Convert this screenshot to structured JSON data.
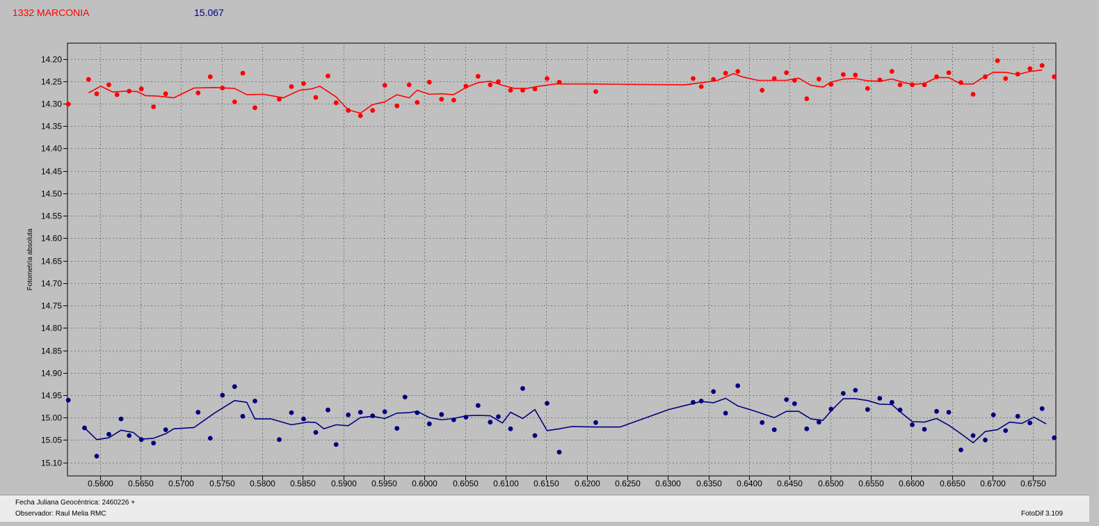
{
  "header": {
    "object_name": "1332 MARCONIA",
    "magnitude": "15.067"
  },
  "footer": {
    "date_label": "Fecha Juliana Geocéntrica: 2460226 +",
    "observer_label": "Observador: Raul Melia RMC",
    "version_label": "FotoDif 3.109"
  },
  "chart_data": {
    "type": "scatter",
    "ylabel": "Fotometría absoluta",
    "xlabel": "",
    "xlim": [
      0.556,
      0.6778
    ],
    "ylim": [
      14.165,
      15.13
    ],
    "y_inverted": true,
    "grid": true,
    "colors": {
      "series_1": "#ff0000",
      "series_2": "#000080"
    },
    "x_ticks": [
      "0.5600",
      "0.5650",
      "0.5700",
      "0.5750",
      "0.5800",
      "0.5850",
      "0.5900",
      "0.5950",
      "0.6000",
      "0.6050",
      "0.6100",
      "0.6150",
      "0.6200",
      "0.6250",
      "0.6300",
      "0.6350",
      "0.6400",
      "0.6450",
      "0.6500",
      "0.6550",
      "0.6600",
      "0.6650",
      "0.6700",
      "0.6750"
    ],
    "y_ticks": [
      "14.20",
      "14.25",
      "14.30",
      "14.35",
      "14.40",
      "14.45",
      "14.50",
      "14.55",
      "14.60",
      "14.65",
      "14.70",
      "14.75",
      "14.80",
      "14.85",
      "14.90",
      "14.95",
      "15.00",
      "15.05",
      "15.10"
    ],
    "series": [
      {
        "points": [
          [
            0.5561,
            14.301
          ],
          [
            0.5586,
            14.246
          ],
          [
            0.5596,
            14.278
          ],
          [
            0.5611,
            14.258
          ],
          [
            0.5621,
            14.28
          ],
          [
            0.5636,
            14.272
          ],
          [
            0.5651,
            14.267
          ],
          [
            0.5666,
            14.307
          ],
          [
            0.5681,
            14.278
          ],
          [
            0.5721,
            14.276
          ],
          [
            0.5736,
            14.24
          ],
          [
            0.5751,
            14.265
          ],
          [
            0.5766,
            14.296
          ],
          [
            0.5776,
            14.232
          ],
          [
            0.5791,
            14.309
          ],
          [
            0.5821,
            14.29
          ],
          [
            0.5836,
            14.262
          ],
          [
            0.5851,
            14.255
          ],
          [
            0.5866,
            14.286
          ],
          [
            0.5881,
            14.238
          ],
          [
            0.5891,
            14.298
          ],
          [
            0.5906,
            14.315
          ],
          [
            0.5921,
            14.327
          ],
          [
            0.5936,
            14.315
          ],
          [
            0.5951,
            14.259
          ],
          [
            0.5966,
            14.305
          ],
          [
            0.5981,
            14.258
          ],
          [
            0.5991,
            14.297
          ],
          [
            0.6006,
            14.252
          ],
          [
            0.6021,
            14.29
          ],
          [
            0.6036,
            14.292
          ],
          [
            0.6051,
            14.261
          ],
          [
            0.6066,
            14.239
          ],
          [
            0.6081,
            14.258
          ],
          [
            0.6091,
            14.251
          ],
          [
            0.6106,
            14.27
          ],
          [
            0.6121,
            14.27
          ],
          [
            0.6136,
            14.267
          ],
          [
            0.6151,
            14.244
          ],
          [
            0.6166,
            14.252
          ],
          [
            0.6211,
            14.273
          ],
          [
            0.6331,
            14.244
          ],
          [
            0.6341,
            14.262
          ],
          [
            0.6356,
            14.246
          ],
          [
            0.6371,
            14.232
          ],
          [
            0.6386,
            14.228
          ],
          [
            0.6416,
            14.27
          ],
          [
            0.6431,
            14.244
          ],
          [
            0.6446,
            14.231
          ],
          [
            0.6456,
            14.248
          ],
          [
            0.6471,
            14.289
          ],
          [
            0.6486,
            14.245
          ],
          [
            0.6501,
            14.257
          ],
          [
            0.6516,
            14.235
          ],
          [
            0.6531,
            14.236
          ],
          [
            0.6546,
            14.266
          ],
          [
            0.6561,
            14.247
          ],
          [
            0.6576,
            14.228
          ],
          [
            0.6586,
            14.258
          ],
          [
            0.6601,
            14.258
          ],
          [
            0.6616,
            14.258
          ],
          [
            0.6631,
            14.24
          ],
          [
            0.6646,
            14.231
          ],
          [
            0.6661,
            14.253
          ],
          [
            0.6676,
            14.279
          ],
          [
            0.6691,
            14.24
          ],
          [
            0.6706,
            14.204
          ],
          [
            0.6716,
            14.244
          ],
          [
            0.6731,
            14.234
          ],
          [
            0.6746,
            14.222
          ],
          [
            0.6761,
            14.215
          ],
          [
            0.6776,
            14.24
          ]
        ],
        "trend": [
          [
            0.5586,
            14.276
          ],
          [
            0.5601,
            14.261
          ],
          [
            0.5616,
            14.274
          ],
          [
            0.5631,
            14.272
          ],
          [
            0.5646,
            14.273
          ],
          [
            0.5656,
            14.282
          ],
          [
            0.5671,
            14.283
          ],
          [
            0.5681,
            14.285
          ],
          [
            0.5691,
            14.287
          ],
          [
            0.5716,
            14.265
          ],
          [
            0.5741,
            14.264
          ],
          [
            0.5766,
            14.266
          ],
          [
            0.5781,
            14.28
          ],
          [
            0.5801,
            14.279
          ],
          [
            0.5826,
            14.287
          ],
          [
            0.5846,
            14.27
          ],
          [
            0.5861,
            14.267
          ],
          [
            0.5871,
            14.261
          ],
          [
            0.5891,
            14.285
          ],
          [
            0.5906,
            14.314
          ],
          [
            0.5921,
            14.321
          ],
          [
            0.5936,
            14.302
          ],
          [
            0.5951,
            14.296
          ],
          [
            0.5966,
            14.28
          ],
          [
            0.5981,
            14.287
          ],
          [
            0.5991,
            14.27
          ],
          [
            0.6006,
            14.279
          ],
          [
            0.6021,
            14.278
          ],
          [
            0.6036,
            14.28
          ],
          [
            0.6051,
            14.264
          ],
          [
            0.6066,
            14.253
          ],
          [
            0.6081,
            14.25
          ],
          [
            0.6096,
            14.259
          ],
          [
            0.6111,
            14.266
          ],
          [
            0.6126,
            14.266
          ],
          [
            0.6141,
            14.261
          ],
          [
            0.6161,
            14.256
          ],
          [
            0.6201,
            14.256
          ],
          [
            0.6256,
            14.257
          ],
          [
            0.6321,
            14.258
          ],
          [
            0.6346,
            14.252
          ],
          [
            0.6361,
            14.248
          ],
          [
            0.6381,
            14.233
          ],
          [
            0.6391,
            14.24
          ],
          [
            0.6411,
            14.248
          ],
          [
            0.6446,
            14.248
          ],
          [
            0.6461,
            14.243
          ],
          [
            0.6476,
            14.259
          ],
          [
            0.6491,
            14.263
          ],
          [
            0.6501,
            14.252
          ],
          [
            0.6516,
            14.245
          ],
          [
            0.6531,
            14.244
          ],
          [
            0.6546,
            14.249
          ],
          [
            0.6561,
            14.25
          ],
          [
            0.6576,
            14.245
          ],
          [
            0.6591,
            14.253
          ],
          [
            0.6601,
            14.257
          ],
          [
            0.6616,
            14.255
          ],
          [
            0.6631,
            14.242
          ],
          [
            0.6646,
            14.242
          ],
          [
            0.6661,
            14.256
          ],
          [
            0.6676,
            14.256
          ],
          [
            0.6686,
            14.244
          ],
          [
            0.6701,
            14.23
          ],
          [
            0.6716,
            14.23
          ],
          [
            0.6731,
            14.235
          ],
          [
            0.6746,
            14.228
          ],
          [
            0.6761,
            14.225
          ]
        ]
      },
      {
        "points": [
          [
            0.5561,
            14.961
          ],
          [
            0.5581,
            15.023
          ],
          [
            0.5596,
            15.086
          ],
          [
            0.5611,
            15.037
          ],
          [
            0.5626,
            15.003
          ],
          [
            0.5636,
            15.04
          ],
          [
            0.5651,
            15.049
          ],
          [
            0.5666,
            15.057
          ],
          [
            0.5681,
            15.027
          ],
          [
            0.5721,
            14.988
          ],
          [
            0.5736,
            15.046
          ],
          [
            0.5751,
            14.95
          ],
          [
            0.5766,
            14.931
          ],
          [
            0.5776,
            14.997
          ],
          [
            0.5791,
            14.963
          ],
          [
            0.5821,
            15.049
          ],
          [
            0.5836,
            14.989
          ],
          [
            0.5851,
            15.003
          ],
          [
            0.5866,
            15.033
          ],
          [
            0.5881,
            14.983
          ],
          [
            0.5891,
            15.06
          ],
          [
            0.5906,
            14.994
          ],
          [
            0.5921,
            14.988
          ],
          [
            0.5936,
            14.996
          ],
          [
            0.5951,
            14.987
          ],
          [
            0.5966,
            15.024
          ],
          [
            0.5976,
            14.954
          ],
          [
            0.5991,
            14.989
          ],
          [
            0.6006,
            15.014
          ],
          [
            0.6021,
            14.993
          ],
          [
            0.6036,
            15.005
          ],
          [
            0.6051,
            14.999
          ],
          [
            0.6066,
            14.973
          ],
          [
            0.6081,
            15.01
          ],
          [
            0.6091,
            14.998
          ],
          [
            0.6106,
            15.025
          ],
          [
            0.6121,
            14.935
          ],
          [
            0.6136,
            15.04
          ],
          [
            0.6151,
            14.968
          ],
          [
            0.6166,
            15.077
          ],
          [
            0.6211,
            15.011
          ],
          [
            0.6331,
            14.966
          ],
          [
            0.6341,
            14.963
          ],
          [
            0.6356,
            14.942
          ],
          [
            0.6371,
            14.99
          ],
          [
            0.6386,
            14.929
          ],
          [
            0.6416,
            15.011
          ],
          [
            0.6431,
            15.027
          ],
          [
            0.6446,
            14.96
          ],
          [
            0.6456,
            14.969
          ],
          [
            0.6471,
            15.025
          ],
          [
            0.6486,
            15.01
          ],
          [
            0.6501,
            14.981
          ],
          [
            0.6516,
            14.946
          ],
          [
            0.6531,
            14.939
          ],
          [
            0.6546,
            14.982
          ],
          [
            0.6561,
            14.957
          ],
          [
            0.6576,
            14.966
          ],
          [
            0.6586,
            14.983
          ],
          [
            0.6601,
            15.016
          ],
          [
            0.6616,
            15.026
          ],
          [
            0.6631,
            14.986
          ],
          [
            0.6646,
            14.988
          ],
          [
            0.6661,
            15.072
          ],
          [
            0.6676,
            15.04
          ],
          [
            0.6691,
            15.05
          ],
          [
            0.6701,
            14.994
          ],
          [
            0.6716,
            15.029
          ],
          [
            0.6731,
            14.997
          ],
          [
            0.6746,
            15.012
          ],
          [
            0.6761,
            14.98
          ],
          [
            0.6776,
            15.045
          ]
        ],
        "trend": [
          [
            0.5581,
            15.023
          ],
          [
            0.5596,
            15.049
          ],
          [
            0.5611,
            15.045
          ],
          [
            0.5626,
            15.028
          ],
          [
            0.5641,
            15.033
          ],
          [
            0.5651,
            15.048
          ],
          [
            0.5666,
            15.046
          ],
          [
            0.5681,
            15.036
          ],
          [
            0.5691,
            15.025
          ],
          [
            0.5716,
            15.022
          ],
          [
            0.5741,
            14.99
          ],
          [
            0.5766,
            14.962
          ],
          [
            0.5781,
            14.966
          ],
          [
            0.5791,
            15.003
          ],
          [
            0.5811,
            15.003
          ],
          [
            0.5836,
            15.016
          ],
          [
            0.5856,
            15.01
          ],
          [
            0.5866,
            15.011
          ],
          [
            0.5876,
            15.025
          ],
          [
            0.5891,
            15.016
          ],
          [
            0.5906,
            15.018
          ],
          [
            0.5921,
            15.0
          ],
          [
            0.5936,
            14.997
          ],
          [
            0.5951,
            15.002
          ],
          [
            0.5966,
            14.99
          ],
          [
            0.5981,
            14.989
          ],
          [
            0.5991,
            14.986
          ],
          [
            0.6006,
            15.0
          ],
          [
            0.6021,
            15.005
          ],
          [
            0.6036,
            15.002
          ],
          [
            0.6051,
            14.996
          ],
          [
            0.6066,
            14.995
          ],
          [
            0.6081,
            14.996
          ],
          [
            0.6096,
            15.012
          ],
          [
            0.6106,
            14.988
          ],
          [
            0.6121,
            15.002
          ],
          [
            0.6136,
            14.982
          ],
          [
            0.6151,
            15.029
          ],
          [
            0.6166,
            15.025
          ],
          [
            0.6181,
            15.02
          ],
          [
            0.6211,
            15.021
          ],
          [
            0.6241,
            15.021
          ],
          [
            0.6261,
            15.008
          ],
          [
            0.6301,
            14.982
          ],
          [
            0.6321,
            14.973
          ],
          [
            0.6341,
            14.964
          ],
          [
            0.6356,
            14.967
          ],
          [
            0.6371,
            14.957
          ],
          [
            0.6386,
            14.974
          ],
          [
            0.6406,
            14.985
          ],
          [
            0.6431,
            15.0
          ],
          [
            0.6446,
            14.986
          ],
          [
            0.6461,
            14.986
          ],
          [
            0.6476,
            15.003
          ],
          [
            0.6491,
            15.006
          ],
          [
            0.6501,
            14.985
          ],
          [
            0.6516,
            14.958
          ],
          [
            0.6531,
            14.958
          ],
          [
            0.6546,
            14.962
          ],
          [
            0.6561,
            14.97
          ],
          [
            0.6576,
            14.971
          ],
          [
            0.6586,
            14.987
          ],
          [
            0.6601,
            15.009
          ],
          [
            0.6616,
            15.01
          ],
          [
            0.6631,
            15.002
          ],
          [
            0.6646,
            15.017
          ],
          [
            0.6661,
            15.036
          ],
          [
            0.6676,
            15.056
          ],
          [
            0.6691,
            15.031
          ],
          [
            0.6706,
            15.027
          ],
          [
            0.6721,
            15.01
          ],
          [
            0.6736,
            15.013
          ],
          [
            0.6751,
            14.999
          ],
          [
            0.6766,
            15.014
          ]
        ]
      }
    ]
  }
}
